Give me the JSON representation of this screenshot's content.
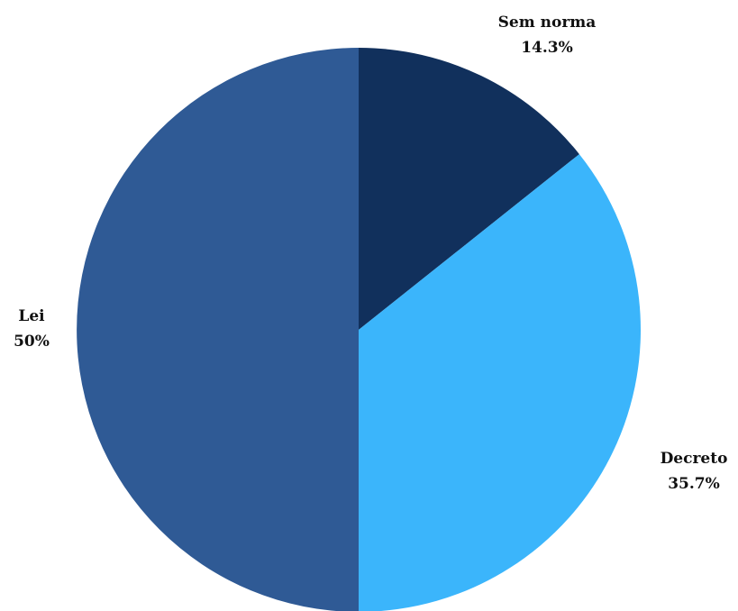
{
  "chart_data": {
    "type": "pie",
    "title": "",
    "start_angle_deg": 0,
    "direction": "clockwise",
    "slices": [
      {
        "label": "Sem norma",
        "value": 14.3,
        "value_label": "14.3%",
        "color": "#11305c"
      },
      {
        "label": "Decreto",
        "value": 35.7,
        "value_label": "35.7%",
        "color": "#3bb5fb"
      },
      {
        "label": "Lei",
        "value": 50,
        "value_label": "50%",
        "color": "#2f5a95"
      }
    ]
  }
}
